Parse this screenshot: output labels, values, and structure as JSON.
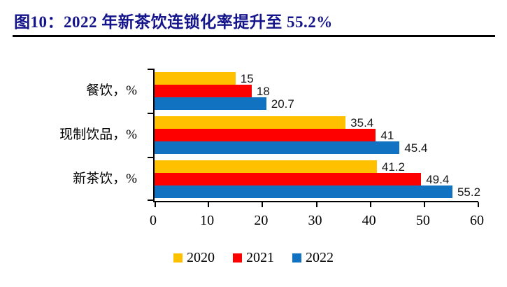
{
  "figure": {
    "title": "图10：2022 年新茶饮连锁化率提升至 55.2%",
    "title_color": "#14148B"
  },
  "chart_data": {
    "type": "bar",
    "orientation": "horizontal",
    "categories": [
      "餐饮，%",
      "现制饮品，%",
      "新茶饮，%"
    ],
    "series": [
      {
        "name": "2020",
        "color": "#FFC000",
        "values": [
          15,
          35.4,
          41.2
        ],
        "labels": [
          "15",
          "35.4",
          "41.2"
        ]
      },
      {
        "name": "2021",
        "color": "#FF0000",
        "values": [
          18,
          41,
          49.4
        ],
        "labels": [
          "18",
          "41",
          "49.4"
        ]
      },
      {
        "name": "2022",
        "color": "#1272C2",
        "values": [
          20.7,
          45.4,
          55.2
        ],
        "labels": [
          "20.7",
          "45.4",
          "55.2"
        ]
      }
    ],
    "x_axis": {
      "min": 0,
      "max": 60,
      "ticks": [
        0,
        10,
        20,
        30,
        40,
        50,
        60
      ]
    },
    "legend": {
      "position": "bottom",
      "entries": [
        "2020",
        "2021",
        "2022"
      ]
    },
    "grid": false
  }
}
